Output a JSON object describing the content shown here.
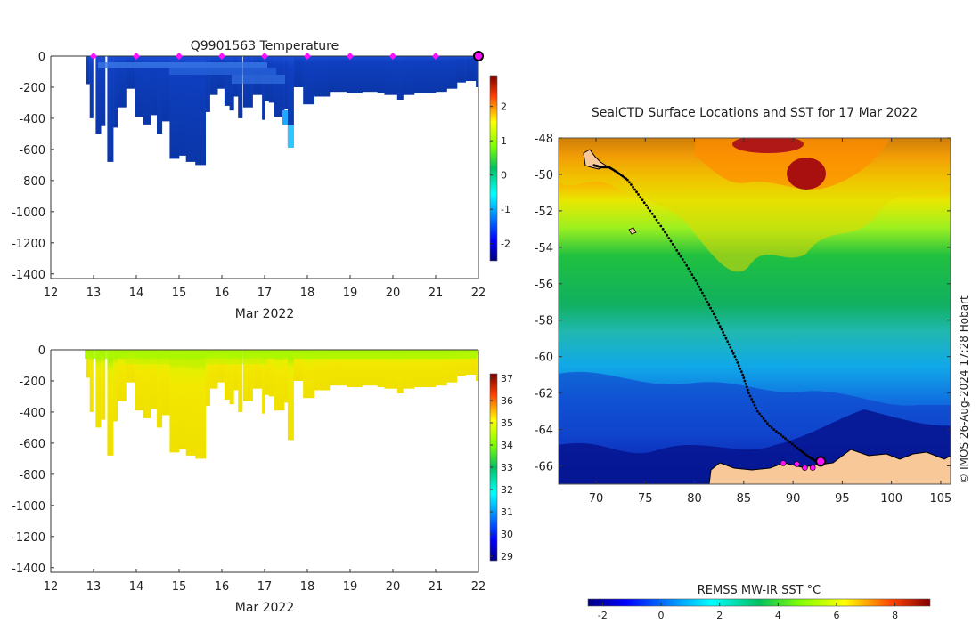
{
  "chart_data": [
    {
      "type": "heatmap",
      "title": "Q9901563  Temperature",
      "xlabel": "Mar 2022",
      "ylabel": "",
      "xlim": [
        12,
        22
      ],
      "ylim": [
        -1430,
        0
      ],
      "x_ticks": [
        "12",
        "13",
        "14",
        "15",
        "16",
        "17",
        "18",
        "19",
        "20",
        "21",
        "22"
      ],
      "y_ticks": [
        "0",
        "-200",
        "-400",
        "-600",
        "-800",
        "-1000",
        "-1200",
        "-1400"
      ],
      "colorbar": {
        "min": -2.5,
        "max": 2.9,
        "ticks": [
          "-2",
          "-1",
          "0",
          "1",
          "2"
        ]
      },
      "markers_x": [
        13,
        14,
        15,
        16,
        17,
        18,
        19,
        20,
        21,
        22
      ],
      "profiles": [
        {
          "x": 12.83,
          "w": 0.08,
          "depth": 180
        },
        {
          "x": 12.91,
          "w": 0.08,
          "depth": 400
        },
        {
          "x": 13.05,
          "w": 0.12,
          "depth": 500
        },
        {
          "x": 13.17,
          "w": 0.1,
          "depth": 450
        },
        {
          "x": 13.32,
          "w": 0.14,
          "depth": 680
        },
        {
          "x": 13.46,
          "w": 0.1,
          "depth": 460
        },
        {
          "x": 13.56,
          "w": 0.2,
          "depth": 330
        },
        {
          "x": 13.76,
          "w": 0.2,
          "depth": 210
        },
        {
          "x": 13.96,
          "w": 0.2,
          "depth": 390
        },
        {
          "x": 14.16,
          "w": 0.18,
          "depth": 440
        },
        {
          "x": 14.34,
          "w": 0.14,
          "depth": 380
        },
        {
          "x": 14.48,
          "w": 0.12,
          "depth": 500
        },
        {
          "x": 14.6,
          "w": 0.18,
          "depth": 420
        },
        {
          "x": 14.78,
          "w": 0.22,
          "depth": 660
        },
        {
          "x": 15.0,
          "w": 0.16,
          "depth": 640
        },
        {
          "x": 15.16,
          "w": 0.22,
          "depth": 680
        },
        {
          "x": 15.38,
          "w": 0.24,
          "depth": 700
        },
        {
          "x": 15.62,
          "w": 0.1,
          "depth": 360
        },
        {
          "x": 15.72,
          "w": 0.18,
          "depth": 250
        },
        {
          "x": 15.9,
          "w": 0.16,
          "depth": 210
        },
        {
          "x": 16.06,
          "w": 0.12,
          "depth": 320
        },
        {
          "x": 16.18,
          "w": 0.1,
          "depth": 350
        },
        {
          "x": 16.28,
          "w": 0.1,
          "depth": 260
        },
        {
          "x": 16.38,
          "w": 0.1,
          "depth": 400
        },
        {
          "x": 16.5,
          "w": 0.22,
          "depth": 330
        },
        {
          "x": 16.72,
          "w": 0.22,
          "depth": 250
        },
        {
          "x": 16.94,
          "w": 0.06,
          "depth": 410
        },
        {
          "x": 17.0,
          "w": 0.1,
          "depth": 290
        },
        {
          "x": 17.1,
          "w": 0.12,
          "depth": 300
        },
        {
          "x": 17.22,
          "w": 0.24,
          "depth": 390
        },
        {
          "x": 17.46,
          "w": 0.08,
          "depth": 340
        },
        {
          "x": 17.54,
          "w": 0.14,
          "depth": 580
        },
        {
          "x": 17.68,
          "w": 0.22,
          "depth": 200
        },
        {
          "x": 17.9,
          "w": 0.26,
          "depth": 310
        },
        {
          "x": 18.16,
          "w": 0.36,
          "depth": 260
        },
        {
          "x": 18.52,
          "w": 0.4,
          "depth": 230
        },
        {
          "x": 18.92,
          "w": 0.36,
          "depth": 240
        },
        {
          "x": 19.28,
          "w": 0.36,
          "depth": 230
        },
        {
          "x": 19.64,
          "w": 0.16,
          "depth": 240
        },
        {
          "x": 19.8,
          "w": 0.3,
          "depth": 250
        },
        {
          "x": 20.1,
          "w": 0.14,
          "depth": 280
        },
        {
          "x": 20.24,
          "w": 0.26,
          "depth": 250
        },
        {
          "x": 20.5,
          "w": 0.5,
          "depth": 240
        },
        {
          "x": 21.0,
          "w": 0.26,
          "depth": 230
        },
        {
          "x": 21.26,
          "w": 0.24,
          "depth": 210
        },
        {
          "x": 21.5,
          "w": 0.2,
          "depth": 170
        },
        {
          "x": 21.7,
          "w": 0.24,
          "depth": 160
        },
        {
          "x": 21.94,
          "w": 0.06,
          "depth": 200
        }
      ]
    },
    {
      "type": "heatmap",
      "title": "",
      "xlabel": "Mar 2022",
      "ylabel": "",
      "xlim": [
        12,
        22
      ],
      "ylim": [
        -1430,
        0
      ],
      "x_ticks": [
        "12",
        "13",
        "14",
        "15",
        "16",
        "17",
        "18",
        "19",
        "20",
        "21",
        "22"
      ],
      "y_ticks": [
        "0",
        "-200",
        "-400",
        "-600",
        "-800",
        "-1000",
        "-1200",
        "-1400"
      ],
      "colorbar": {
        "min": 28.8,
        "max": 37.2,
        "ticks": [
          "29",
          "30",
          "31",
          "32",
          "33",
          "34",
          "35",
          "36",
          "37"
        ]
      }
    },
    {
      "type": "heatmap",
      "title": "SealCTD Surface Locations and SST for 17 Mar 2022",
      "xlabel": "",
      "ylabel": "",
      "xlim": [
        66.2,
        106
      ],
      "ylim": [
        -67,
        -48
      ],
      "x_ticks": [
        "70",
        "75",
        "80",
        "85",
        "90",
        "95",
        "100",
        "105"
      ],
      "y_ticks": [
        "-48",
        "-50",
        "-52",
        "-54",
        "-56",
        "-58",
        "-60",
        "-62",
        "-64",
        "-66"
      ],
      "colorbar": {
        "label": "REMSS MW-IR SST °C",
        "min": -2.5,
        "max": 9.2,
        "ticks": [
          "-2",
          "0",
          "2",
          "4",
          "6",
          "8"
        ]
      },
      "track": [
        [
          69.8,
          -49.5
        ],
        [
          70.5,
          -49.6
        ],
        [
          71.3,
          -49.6
        ],
        [
          72.2,
          -49.9
        ],
        [
          73.2,
          -50.3
        ],
        [
          74.3,
          -51.1
        ],
        [
          75.5,
          -52.0
        ],
        [
          76.8,
          -53.0
        ],
        [
          78.0,
          -54.0
        ],
        [
          79.2,
          -55.0
        ],
        [
          80.3,
          -56.0
        ],
        [
          81.3,
          -57.0
        ],
        [
          82.3,
          -58.0
        ],
        [
          83.2,
          -59.0
        ],
        [
          84.1,
          -60.0
        ],
        [
          84.9,
          -61.0
        ],
        [
          85.5,
          -62.0
        ],
        [
          86.4,
          -63.0
        ],
        [
          87.6,
          -63.8
        ],
        [
          89.0,
          -64.4
        ],
        [
          90.4,
          -65.0
        ],
        [
          91.6,
          -65.5
        ],
        [
          92.5,
          -65.8
        ]
      ],
      "highlight_points": [
        [
          89.0,
          -65.85
        ],
        [
          90.4,
          -65.9
        ],
        [
          91.2,
          -66.1
        ],
        [
          92.0,
          -66.1
        ],
        [
          92.6,
          -65.8
        ]
      ],
      "current_position": [
        92.8,
        -65.75
      ]
    }
  ],
  "credit": "© IMOS 26-Aug-2024 17:28 Hobart"
}
